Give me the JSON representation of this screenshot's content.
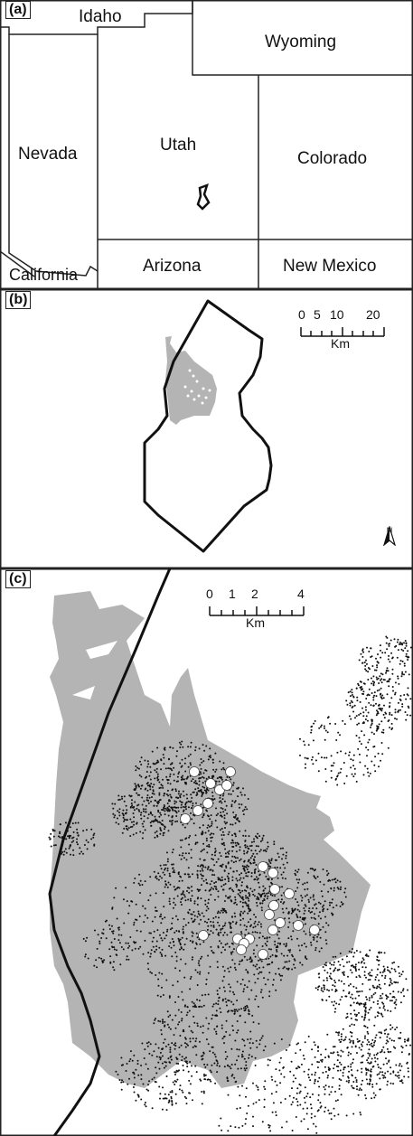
{
  "panel_a": {
    "label": "(a)",
    "states": {
      "idaho": "Idaho",
      "wyoming": "Wyoming",
      "nevada": "Nevada",
      "utah": "Utah",
      "colorado": "Colorado",
      "california": "California",
      "arizona": "Arizona",
      "new_mexico": "New Mexico"
    }
  },
  "panel_b": {
    "label": "(b)",
    "scale": {
      "ticks": [
        "0",
        "5",
        "10",
        "20"
      ],
      "unit": "Km"
    },
    "north": "N"
  },
  "panel_c": {
    "label": "(c)",
    "scale": {
      "ticks": [
        "0",
        "1",
        "2",
        "4"
      ],
      "unit": "Km"
    }
  },
  "colors": {
    "gray_area": "#b4b4b4",
    "points": "#111111",
    "sites": "#ffffff"
  },
  "map_data": {
    "study_site_count": 24
  }
}
